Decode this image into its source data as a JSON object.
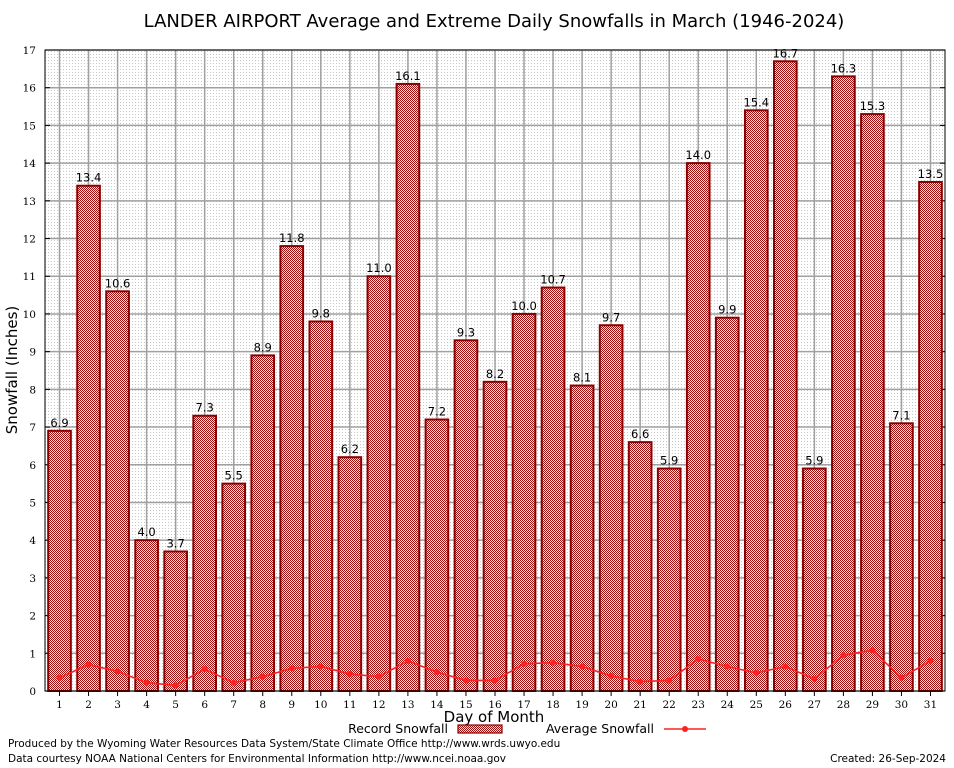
{
  "colors": {
    "bar_fill": "#d8b4b4",
    "bar_stroke": "#8b0000",
    "avg_line": "#ff2020",
    "grid": "#a0a0a0"
  },
  "footer": {
    "produced_by": "Produced by the Wyoming Water Resources Data System/State Climate Office http://www.wrds.uwyo.edu",
    "courtesy": "Data courtesy NOAA National Centers for Environmental Information http://www.ncei.noaa.gov",
    "created": "Created:  26-Sep-2024"
  },
  "chart_data": {
    "type": "bar",
    "title": "LANDER AIRPORT Average and Extreme Daily Snowfalls in March (1946-2024)",
    "xlabel": "Day of Month",
    "ylabel": "Snowfall (Inches)",
    "ylim": [
      0,
      17
    ],
    "yticks": [
      "0",
      "1",
      "2",
      "3",
      "4",
      "5",
      "6",
      "7",
      "8",
      "9",
      "10",
      "11",
      "12",
      "13",
      "14",
      "15",
      "16",
      "17"
    ],
    "grid": true,
    "legend_position": "bottom",
    "categories": [
      "1",
      "2",
      "3",
      "4",
      "5",
      "6",
      "7",
      "8",
      "9",
      "10",
      "11",
      "12",
      "13",
      "14",
      "15",
      "16",
      "17",
      "18",
      "19",
      "20",
      "21",
      "22",
      "23",
      "24",
      "25",
      "26",
      "27",
      "28",
      "29",
      "30",
      "31"
    ],
    "series": [
      {
        "name": "Record Snowfall",
        "type": "bar",
        "values": [
          6.9,
          13.4,
          10.6,
          4.0,
          3.7,
          7.3,
          5.5,
          8.9,
          11.8,
          9.8,
          6.2,
          11.0,
          16.1,
          7.2,
          9.3,
          8.2,
          10.0,
          10.7,
          8.1,
          9.7,
          6.6,
          5.9,
          14.0,
          9.9,
          15.4,
          16.7,
          5.9,
          16.3,
          15.3,
          7.1,
          13.5
        ],
        "labels": [
          "6.9",
          "13.4",
          "10.6",
          "4.0",
          "3.7",
          "7.3",
          "5.5",
          "8.9",
          "11.8",
          "9.8",
          "6.2",
          "11.0",
          "16.1",
          "7.2",
          "9.3",
          "8.2",
          "10.0",
          "10.7",
          "8.1",
          "9.7",
          "6.6",
          "5.9",
          "14.0",
          "9.9",
          "15.4",
          "16.7",
          "5.9",
          "16.3",
          "15.3",
          "7.1",
          "13.5"
        ]
      },
      {
        "name": "Average Snowfall",
        "type": "line",
        "values": [
          0.35,
          0.7,
          0.52,
          0.22,
          0.15,
          0.58,
          0.22,
          0.38,
          0.6,
          0.65,
          0.45,
          0.38,
          0.8,
          0.5,
          0.28,
          0.28,
          0.72,
          0.75,
          0.65,
          0.4,
          0.25,
          0.28,
          0.85,
          0.65,
          0.48,
          0.65,
          0.32,
          0.95,
          1.08,
          0.35,
          0.8
        ]
      }
    ]
  }
}
